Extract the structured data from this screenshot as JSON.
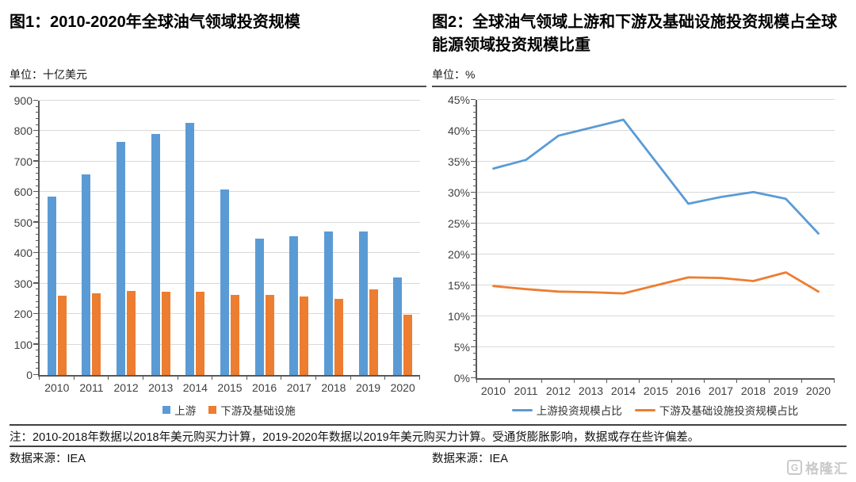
{
  "chart_data": [
    {
      "id": "chart1",
      "type": "bar",
      "title": "图1：2010-2020年全球油气领域投资规模",
      "unit": "单位：十亿美元",
      "categories": [
        "2010",
        "2011",
        "2012",
        "2013",
        "2014",
        "2015",
        "2016",
        "2017",
        "2018",
        "2019",
        "2020"
      ],
      "series": [
        {
          "name": "上游",
          "color": "#5B9BD5",
          "values": [
            585,
            658,
            765,
            792,
            828,
            610,
            448,
            455,
            472,
            470,
            320
          ]
        },
        {
          "name": "下游及基础设施",
          "color": "#ED7D31",
          "values": [
            260,
            268,
            276,
            273,
            273,
            262,
            262,
            257,
            250,
            281,
            197
          ]
        }
      ],
      "ylim": [
        0,
        900
      ],
      "ytick_step": 100,
      "ytick_minor_step": 20,
      "ytick_suffix": "",
      "grid": true,
      "legend_position": "bottom"
    },
    {
      "id": "chart2",
      "type": "line",
      "title": "图2：全球油气领域上游和下游及基础设施投资规模占全球能源领域投资规模比重",
      "unit": "单位：%",
      "categories": [
        "2010",
        "2011",
        "2012",
        "2013",
        "2014",
        "2015",
        "2016",
        "2017",
        "2018",
        "2019",
        "2020"
      ],
      "series": [
        {
          "name": "上游投资规模占比",
          "color": "#5B9BD5",
          "values": [
            33.9,
            35.3,
            39.2,
            40.5,
            41.8,
            35.0,
            28.2,
            29.3,
            30.1,
            29.0,
            23.4
          ]
        },
        {
          "name": "下游及基础设施投资规模占比",
          "color": "#ED7D31",
          "values": [
            14.9,
            14.4,
            14.0,
            13.9,
            13.7,
            15.0,
            16.3,
            16.2,
            15.7,
            17.1,
            14.0
          ]
        }
      ],
      "ylim": [
        0,
        45
      ],
      "ytick_step": 5,
      "ytick_minor_step": 1,
      "ytick_suffix": "%",
      "grid": true,
      "legend_position": "bottom"
    }
  ],
  "footer": {
    "note": "注：2010-2018年数据以2018年美元购买力计算，2019-2020年数据以2019年美元购买力计算。受通货膨胀影响，数据或存在些许偏差。",
    "source_left": "数据来源：IEA",
    "source_right": "数据来源：IEA"
  },
  "watermark": {
    "icon": "G",
    "text": "格隆汇"
  },
  "colors": {
    "series_blue": "#5B9BD5",
    "series_orange": "#ED7D31",
    "gridline": "#D9D9D9",
    "axis": "#595959"
  }
}
